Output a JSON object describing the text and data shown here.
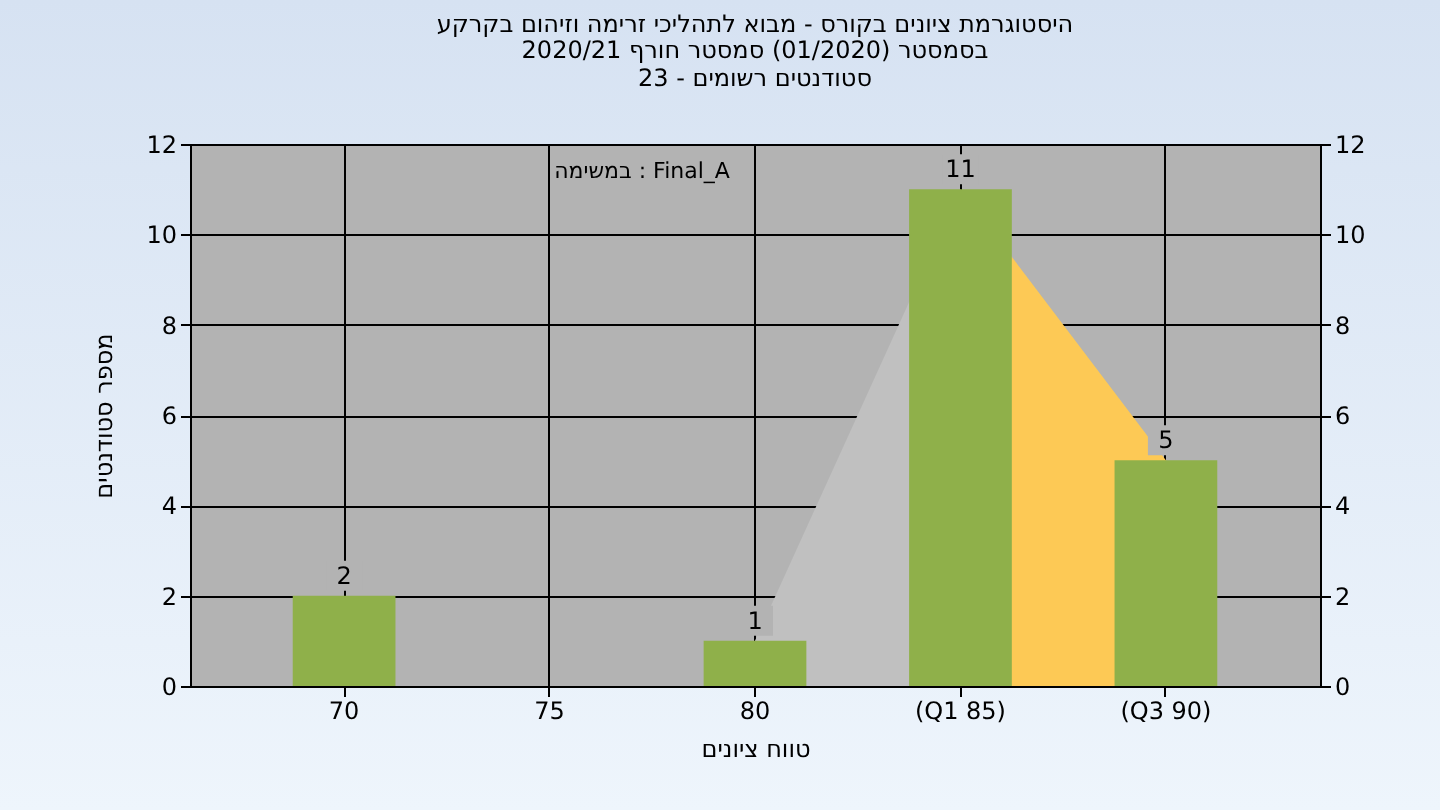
{
  "chart_data": {
    "type": "bar",
    "title": "היסטוגרמת ציונים בקורס - מבוא לתהליכי זרימה וזיהום בקרקע",
    "subtitle": "בסמסטר  (01/2020)  סמסטר חורף 2020/21\nסטודנטים רשומים - 23",
    "xlabel": "טווח ציונים",
    "ylabel": "מספר סטודנטים",
    "annotations": [
      "במשימה : Final_A"
    ],
    "categories": [
      "70",
      "75",
      "80",
      "(Q1 85)",
      "(Q3 90)"
    ],
    "series": [
      {
        "type": "area",
        "color": "#c0c0c0",
        "values": [
          null,
          null,
          1,
          11,
          null
        ]
      },
      {
        "type": "area",
        "color": "#fdc955",
        "values": [
          null,
          null,
          null,
          11,
          5
        ]
      },
      {
        "type": "bar",
        "color": "#8fb04a",
        "values": [
          2,
          null,
          1,
          11,
          5
        ],
        "value_labels": [
          "2",
          null,
          "1",
          "11",
          "5"
        ]
      }
    ],
    "ylim": [
      0,
      12
    ],
    "yticks": [
      0,
      2,
      4,
      6,
      8,
      10,
      12
    ],
    "y2lim": [
      0,
      12
    ],
    "y2ticks": [
      0,
      2,
      4,
      6,
      8,
      10,
      12
    ],
    "grid": true
  }
}
